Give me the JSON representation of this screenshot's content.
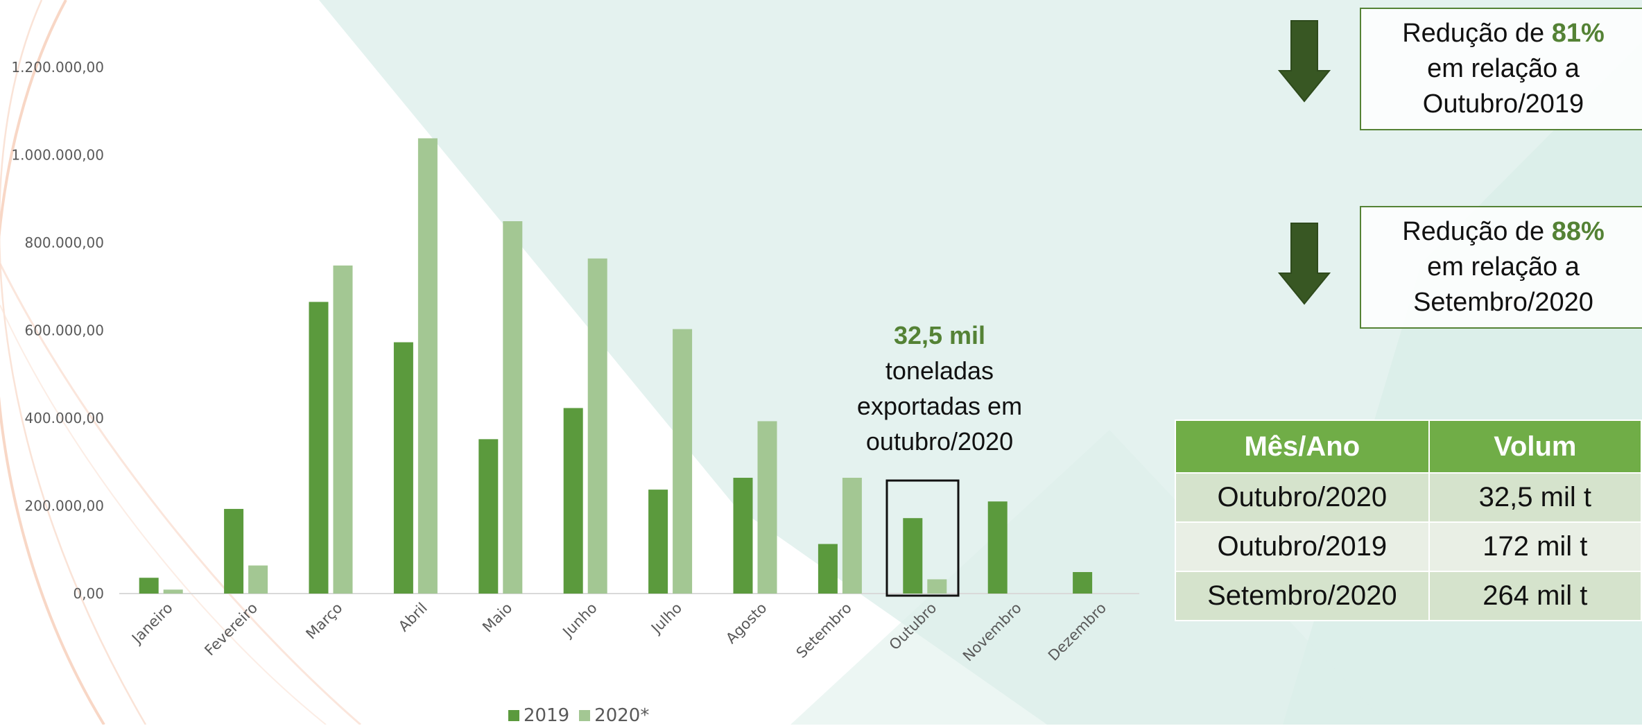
{
  "colors": {
    "series_2019": "#5b9a3d",
    "series_2020": "#a3c793",
    "accent_green": "#548235",
    "table_header": "#70ad47"
  },
  "chart_data": {
    "type": "bar",
    "categories": [
      "Janeiro",
      "Fevereiro",
      "Março",
      "Abril",
      "Maio",
      "Junho",
      "Julho",
      "Agosto",
      "Setembro",
      "Outubro",
      "Novembro",
      "Dezembro"
    ],
    "series": [
      {
        "name": "2019",
        "values": [
          36000,
          193000,
          665000,
          573000,
          352000,
          423000,
          237000,
          264000,
          113000,
          172000,
          210000,
          49000
        ]
      },
      {
        "name": "2020*",
        "values": [
          9000,
          64000,
          748000,
          1038000,
          849000,
          764000,
          603000,
          393000,
          264000,
          32500,
          null,
          null
        ]
      }
    ],
    "y_ticks": [
      "0,00",
      "200.000,00",
      "400.000,00",
      "600.000,00",
      "800.000,00",
      "1.000.000,00",
      "1.200.000,00"
    ],
    "ylim": [
      0,
      1200000
    ],
    "legend_position": "bottom",
    "highlighted_category": "Outubro",
    "grid": false
  },
  "annotation": {
    "value": "32,5 mil",
    "line1": "toneladas",
    "line2": "exportadas em",
    "line3": "outubro/2020"
  },
  "reductions": [
    {
      "prefix": "Redução de ",
      "pct": "81%",
      "line2": "em relação a",
      "line3": "Outubro/2019",
      "icon": "down-arrow-icon"
    },
    {
      "prefix": "Redução de ",
      "pct": "88%",
      "line2": "em relação a",
      "line3": "Setembro/2020",
      "icon": "down-arrow-icon"
    }
  ],
  "table": {
    "headers": [
      "Mês/Ano",
      "Volum"
    ],
    "rows": [
      [
        "Outubro/2020",
        "32,5 mil t"
      ],
      [
        "Outubro/2019",
        "172 mil t"
      ],
      [
        "Setembro/2020",
        "264 mil t"
      ]
    ]
  }
}
